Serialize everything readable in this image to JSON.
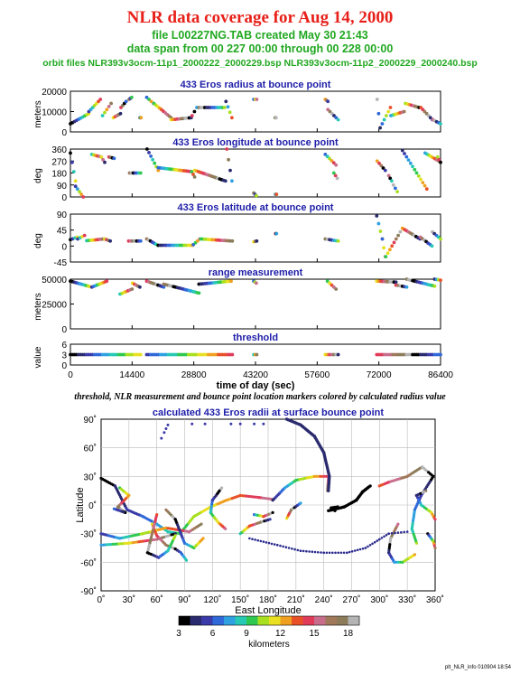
{
  "header": {
    "title": "NLR data coverage for Aug 14, 2000",
    "subtitle_file": "file L00227NG.TAB created May 30 21:43",
    "subtitle_span": "data span from 00 227 00:00 through 00 228 00:00",
    "subtitle_orbit": "orbit files NLR393v3ocm-11p1_2000222_2000229.bsp NLR393v3ocm-11p2_2000229_2000240.bsp",
    "title_color": "#e8201a",
    "subtitle_color": "#21a821"
  },
  "caption": "threshold, NLR measurement and bounce point location markers colored by calculated radius value",
  "footer": "plt_NLR_info 010904 18:54",
  "colors": {
    "panel_title": "#1d1da8",
    "colorscale": [
      "#000000",
      "#2a2a6e",
      "#3a3aa8",
      "#2f68d8",
      "#2fa0e0",
      "#27c8b4",
      "#2ec850",
      "#a8e020",
      "#e8e020",
      "#f0a020",
      "#e85028",
      "#e03c5a",
      "#c86e8c",
      "#a0785a",
      "#8c7c5a",
      "#b4b4b4"
    ]
  },
  "chart_data": [
    {
      "type": "scatter",
      "title": "433 Eros radius at bounce point",
      "ylabel": "meters",
      "ylim": [
        0,
        20000
      ],
      "yticks": [
        "0",
        "10000",
        "20000"
      ],
      "x_segments": [
        [
          0,
          4300
        ],
        [
          4300,
          7000
        ],
        [
          7500,
          9500
        ],
        [
          10000,
          11700
        ],
        [
          11800,
          13000
        ],
        [
          13700,
          14300
        ],
        [
          16300,
          16500
        ],
        [
          17800,
          19400
        ],
        [
          19500,
          23500
        ],
        [
          23500,
          28200
        ],
        [
          28400,
          29500
        ],
        [
          30000,
          36000
        ],
        [
          36300,
          37700
        ],
        [
          42800,
          43500
        ],
        [
          47800,
          48000
        ],
        [
          59500,
          60100
        ],
        [
          60100,
          62500
        ],
        [
          71600,
          72300
        ],
        [
          72300,
          74700
        ],
        [
          74800,
          77900
        ],
        [
          78200,
          81400
        ],
        [
          81800,
          84500
        ],
        [
          84600,
          86400
        ]
      ],
      "y_segments": [
        [
          4000,
          9000
        ],
        [
          10000,
          16000
        ],
        [
          8000,
          14000
        ],
        [
          7000,
          9000
        ],
        [
          12000,
          15000
        ],
        [
          16000,
          17000
        ],
        [
          7000,
          7000
        ],
        [
          17000,
          14000
        ],
        [
          14000,
          7000
        ],
        [
          6000,
          7000
        ],
        [
          8000,
          12000
        ],
        [
          12000,
          12000
        ],
        [
          15000,
          7000
        ],
        [
          16000,
          16000
        ],
        [
          7000,
          7000
        ],
        [
          16000,
          15000
        ],
        [
          11000,
          6000
        ],
        [
          16000,
          2000
        ],
        [
          2000,
          12000
        ],
        [
          8000,
          10000
        ],
        [
          14000,
          12000
        ],
        [
          12000,
          6000
        ],
        [
          6000,
          4000
        ]
      ]
    },
    {
      "type": "scatter",
      "title": "433 Eros longitude at bounce point",
      "ylabel": "deg",
      "ylim": [
        0,
        360
      ],
      "yticks": [
        "0",
        "90",
        "180",
        "270",
        "360"
      ],
      "x_segments": [
        [
          0,
          1200
        ],
        [
          1200,
          3000
        ],
        [
          5000,
          7200
        ],
        [
          7200,
          8000
        ],
        [
          9000,
          10200
        ],
        [
          13800,
          16400
        ],
        [
          17900,
          20500
        ],
        [
          20500,
          28300
        ],
        [
          28300,
          29000
        ],
        [
          29000,
          36200
        ],
        [
          36500,
          37700
        ],
        [
          42800,
          43400
        ],
        [
          47900,
          48100
        ],
        [
          59500,
          62000
        ],
        [
          61500,
          62300
        ],
        [
          71600,
          73500
        ],
        [
          74300,
          75000
        ],
        [
          75400,
          76300
        ],
        [
          77500,
          83200
        ],
        [
          82800,
          86000
        ],
        [
          85700,
          86400
        ]
      ],
      "y_segments": [
        [
          330,
          120
        ],
        [
          80,
          0
        ],
        [
          320,
          300
        ],
        [
          300,
          260
        ],
        [
          300,
          290
        ],
        [
          180,
          180
        ],
        [
          360,
          200
        ],
        [
          220,
          190
        ],
        [
          190,
          150
        ],
        [
          200,
          120
        ],
        [
          360,
          120
        ],
        [
          30,
          10
        ],
        [
          20,
          20
        ],
        [
          320,
          240
        ],
        [
          180,
          140
        ],
        [
          270,
          200
        ],
        [
          160,
          120
        ],
        [
          90,
          40
        ],
        [
          350,
          60
        ],
        [
          330,
          270
        ],
        [
          300,
          260
        ]
      ]
    },
    {
      "type": "scatter",
      "title": "433 Eros latitude at bounce point",
      "ylabel": "deg",
      "ylim": [
        -45,
        90
      ],
      "yticks": [
        "-45",
        "0",
        "45",
        "90"
      ],
      "x_segments": [
        [
          0,
          1600
        ],
        [
          1700,
          3300
        ],
        [
          3800,
          7900
        ],
        [
          8000,
          9300
        ],
        [
          13600,
          16400
        ],
        [
          17800,
          20400
        ],
        [
          20500,
          28500
        ],
        [
          28700,
          30200
        ],
        [
          30400,
          37800
        ],
        [
          42800,
          43500
        ],
        [
          47900,
          48100
        ],
        [
          59500,
          62500
        ],
        [
          71500,
          72800
        ],
        [
          72800,
          73500
        ],
        [
          73600,
          77000
        ],
        [
          77500,
          81600
        ],
        [
          81700,
          84400
        ],
        [
          84500,
          86400
        ]
      ],
      "y_segments": [
        [
          18,
          25
        ],
        [
          20,
          30
        ],
        [
          15,
          20
        ],
        [
          20,
          14
        ],
        [
          14,
          14
        ],
        [
          20,
          2
        ],
        [
          2,
          2
        ],
        [
          4,
          20
        ],
        [
          20,
          14
        ],
        [
          12,
          14
        ],
        [
          35,
          35
        ],
        [
          20,
          14
        ],
        [
          85,
          20
        ],
        [
          20,
          -30
        ],
        [
          -30,
          40
        ],
        [
          50,
          20
        ],
        [
          25,
          0
        ],
        [
          40,
          20
        ]
      ]
    },
    {
      "type": "scatter",
      "title": "range measurement",
      "ylabel": "meters",
      "ylim": [
        0,
        50000
      ],
      "yticks": [
        "0",
        "25000",
        "50000"
      ],
      "x_segments": [
        [
          0,
          5000
        ],
        [
          5000,
          8500
        ],
        [
          11600,
          14400
        ],
        [
          14500,
          16200
        ],
        [
          17800,
          21800
        ],
        [
          21800,
          30000
        ],
        [
          30000,
          37500
        ],
        [
          42800,
          43400
        ],
        [
          60000,
          62000
        ],
        [
          71500,
          76000
        ],
        [
          76000,
          78500
        ],
        [
          78500,
          85000
        ],
        [
          85000,
          86400
        ]
      ],
      "y_segments": [
        [
          48000,
          42000
        ],
        [
          42000,
          48000
        ],
        [
          35000,
          40000
        ],
        [
          46000,
          42000
        ],
        [
          48000,
          42000
        ],
        [
          45000,
          36000
        ],
        [
          45000,
          48000
        ],
        [
          48000,
          46000
        ],
        [
          48000,
          40000
        ],
        [
          48000,
          47000
        ],
        [
          44000,
          42000
        ],
        [
          50000,
          43000
        ],
        [
          50000,
          49000
        ]
      ]
    },
    {
      "type": "scatter",
      "title": "threshold",
      "xlabel": "time of day (sec)",
      "ylabel": "value",
      "ylim": [
        0,
        6
      ],
      "yticks": [
        "0",
        "3",
        "6"
      ],
      "xlim": [
        0,
        86400
      ],
      "xticks": [
        "0",
        "14400",
        "28800",
        "43200",
        "57600",
        "72000",
        "86400"
      ],
      "x_segments": [
        [
          0,
          16400
        ],
        [
          17800,
          37800
        ],
        [
          42800,
          43500
        ],
        [
          59500,
          62500
        ],
        [
          71500,
          86400
        ]
      ],
      "y_segments": [
        [
          3,
          3
        ],
        [
          3,
          3
        ],
        [
          3,
          3
        ],
        [
          3,
          3
        ],
        [
          3,
          3
        ]
      ]
    },
    {
      "type": "scatter",
      "title": "calculated 433 Eros radii at surface bounce point",
      "xlabel": "East Longitude",
      "ylabel": "Latitude",
      "xlim": [
        0,
        360
      ],
      "ylim": [
        -90,
        90
      ],
      "xticks": [
        "0˚",
        "30˚",
        "60˚",
        "90˚",
        "120˚",
        "150˚",
        "180˚",
        "210˚",
        "240˚",
        "270˚",
        "300˚",
        "330˚",
        "360˚"
      ],
      "yticks": [
        "-90˚",
        "-60˚",
        "-30˚",
        "0˚",
        "30˚",
        "60˚",
        "90˚"
      ],
      "colorbar": {
        "label": "kilometers",
        "ticks": [
          "3",
          "6",
          "9",
          "12",
          "15",
          "18"
        ],
        "range": [
          3,
          19
        ]
      }
    }
  ]
}
